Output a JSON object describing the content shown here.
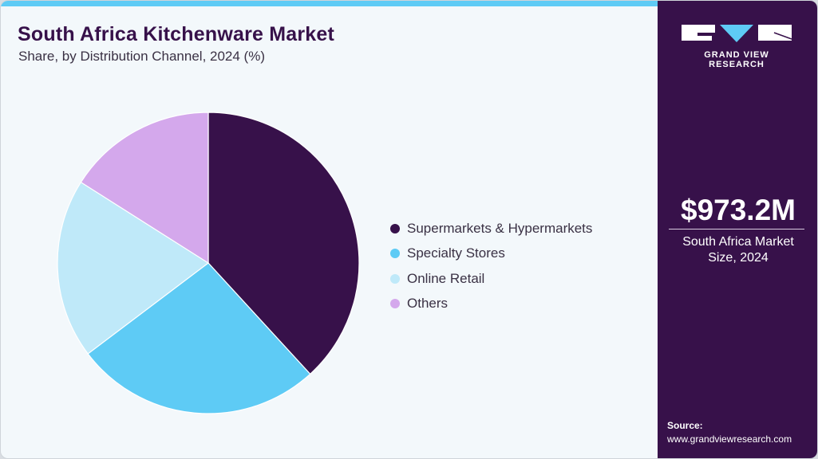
{
  "header": {
    "title": "South Africa Kitchenware Market",
    "subtitle": "Share, by Distribution Channel, 2024 (%)"
  },
  "legend": [
    {
      "label": "Supermarkets & Hypermarkets",
      "color": "#37114a"
    },
    {
      "label": "Specialty Stores",
      "color": "#5ecbf5"
    },
    {
      "label": "Online Retail",
      "color": "#bfe9f9"
    },
    {
      "label": "Others",
      "color": "#d4a8ec"
    }
  ],
  "sidebar": {
    "logo_text": "GRAND VIEW RESEARCH",
    "market_value": "$973.2M",
    "market_label_line1": "South Africa Market",
    "market_label_line2": "Size, 2024",
    "source_title": "Source:",
    "source_url": "www.grandviewresearch.com"
  },
  "colors": {
    "brand_dark": "#37114a",
    "accent": "#5ecbf5",
    "background": "#f3f8fb"
  },
  "chart_data": {
    "type": "pie",
    "title": "South Africa Kitchenware Market",
    "subtitle": "Share, by Distribution Channel, 2024 (%)",
    "categories": [
      "Supermarkets & Hypermarkets",
      "Specialty Stores",
      "Online Retail",
      "Others"
    ],
    "values": [
      38.2,
      26.5,
      19.3,
      16.0
    ],
    "colors": [
      "#37114a",
      "#5ecbf5",
      "#bfe9f9",
      "#d4a8ec"
    ],
    "start_angle": "top, clockwise",
    "legend_position": "right",
    "data_labels": false
  }
}
